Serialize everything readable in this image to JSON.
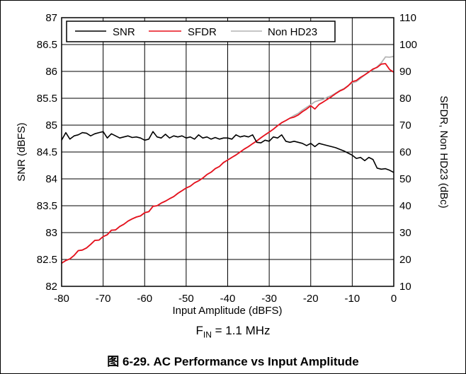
{
  "chart_data": {
    "type": "line",
    "xlabel": "Input Amplitude (dBFS)",
    "ylabel_left": "SNR (dBFS)",
    "ylabel_right": "SFDR, Non HD23 (dBc)",
    "xlim": [
      -80,
      0
    ],
    "ylim_left": [
      82,
      87
    ],
    "ylim_right": [
      10,
      110
    ],
    "x_ticks": [
      "-80",
      "-70",
      "-60",
      "-50",
      "-40",
      "-30",
      "-20",
      "-10",
      "0"
    ],
    "y_left_ticks": [
      "82",
      "82.5",
      "83",
      "83.5",
      "84",
      "84.5",
      "85",
      "85.5",
      "86",
      "86.5",
      "87"
    ],
    "y_right_ticks": [
      "10",
      "20",
      "30",
      "40",
      "50",
      "60",
      "70",
      "80",
      "90",
      "100",
      "110"
    ],
    "grid": true,
    "legend_position": "top-left",
    "series": [
      {
        "name": "SNR",
        "axis": "left",
        "color": "#000000",
        "x": [
          -80,
          -79,
          -78,
          -77,
          -76,
          -75,
          -74,
          -73,
          -72,
          -71,
          -70,
          -69,
          -68,
          -67,
          -66,
          -65,
          -64,
          -63,
          -62,
          -61,
          -60,
          -59,
          -58,
          -57,
          -56,
          -55,
          -54,
          -53,
          -52,
          -51,
          -50,
          -49,
          -48,
          -47,
          -46,
          -45,
          -44,
          -43,
          -42,
          -41,
          -40,
          -39,
          -38,
          -37,
          -36,
          -35,
          -34,
          -33,
          -32,
          -31,
          -30,
          -29,
          -28,
          -27,
          -26,
          -25,
          -24,
          -23,
          -22,
          -21,
          -20,
          -19,
          -18,
          -17,
          -16,
          -15,
          -14,
          -13,
          -12,
          -11,
          -10,
          -9,
          -8,
          -7,
          -6,
          -5,
          -4,
          -3,
          -2,
          -1,
          0
        ],
        "values": [
          84.72,
          84.86,
          84.74,
          84.8,
          84.82,
          84.86,
          84.85,
          84.8,
          84.84,
          84.86,
          84.88,
          84.76,
          84.84,
          84.8,
          84.76,
          84.78,
          84.8,
          84.77,
          84.78,
          84.76,
          84.72,
          84.74,
          84.88,
          84.78,
          84.76,
          84.83,
          84.76,
          84.8,
          84.78,
          84.8,
          84.76,
          84.78,
          84.74,
          84.82,
          84.76,
          84.78,
          84.74,
          84.77,
          84.74,
          84.76,
          84.76,
          84.74,
          84.82,
          84.78,
          84.8,
          84.78,
          84.82,
          84.68,
          84.67,
          84.72,
          84.7,
          84.78,
          84.76,
          84.82,
          84.7,
          84.68,
          84.7,
          84.68,
          84.66,
          84.62,
          84.66,
          84.6,
          84.66,
          84.64,
          84.62,
          84.6,
          84.58,
          84.55,
          84.52,
          84.48,
          84.44,
          84.38,
          84.4,
          84.34,
          84.4,
          84.36,
          84.2,
          84.18,
          84.19,
          84.16,
          84.12
        ]
      },
      {
        "name": "SFDR",
        "axis": "right",
        "color": "#e8101c",
        "x": [
          -80,
          -79,
          -78,
          -77,
          -76,
          -75,
          -74,
          -73,
          -72,
          -71,
          -70,
          -69,
          -68,
          -67,
          -66,
          -65,
          -64,
          -63,
          -62,
          -61,
          -60,
          -59,
          -58,
          -57,
          -56,
          -55,
          -54,
          -53,
          -52,
          -51,
          -50,
          -49,
          -48,
          -47,
          -46,
          -45,
          -44,
          -43,
          -42,
          -41,
          -40,
          -39,
          -38,
          -37,
          -36,
          -35,
          -34,
          -33,
          -32,
          -31,
          -30,
          -29,
          -28,
          -27,
          -26,
          -25,
          -24,
          -23,
          -22,
          -21,
          -20,
          -19,
          -18,
          -17,
          -16,
          -15,
          -14,
          -13,
          -12,
          -11,
          -10,
          -9,
          -8,
          -7,
          -6,
          -5,
          -4,
          -3,
          -2,
          -1,
          0
        ],
        "values": [
          18.6,
          19.6,
          20.2,
          21.5,
          23.3,
          23.5,
          24.3,
          25.6,
          27.1,
          27.2,
          28.5,
          29.2,
          30.9,
          31.0,
          32.3,
          33.1,
          34.3,
          35.1,
          35.8,
          36.2,
          37.4,
          37.8,
          39.8,
          40.0,
          41.0,
          41.7,
          42.6,
          43.4,
          44.6,
          45.6,
          46.6,
          47.3,
          48.5,
          49.3,
          50.3,
          51.6,
          52.5,
          53.8,
          54.6,
          56.1,
          57.0,
          58.0,
          58.9,
          60.0,
          61.1,
          62.0,
          63.1,
          64.1,
          65.3,
          66.4,
          67.4,
          68.5,
          69.8,
          70.9,
          71.7,
          72.6,
          73.0,
          73.8,
          75.0,
          76.0,
          77.2,
          76.0,
          77.7,
          78.6,
          79.6,
          80.6,
          81.7,
          82.7,
          83.4,
          84.6,
          86.2,
          86.6,
          87.8,
          88.7,
          89.8,
          90.9,
          91.5,
          92.7,
          92.9,
          90.7,
          89.7
        ]
      },
      {
        "name": "Non HD23",
        "axis": "right",
        "color": "#b4b4b4",
        "x": [
          -80,
          -79,
          -78,
          -77,
          -76,
          -75,
          -74,
          -73,
          -72,
          -71,
          -70,
          -69,
          -68,
          -67,
          -66,
          -65,
          -64,
          -63,
          -62,
          -61,
          -60,
          -59,
          -58,
          -57,
          -56,
          -55,
          -54,
          -53,
          -52,
          -51,
          -50,
          -49,
          -48,
          -47,
          -46,
          -45,
          -44,
          -43,
          -42,
          -41,
          -40,
          -39,
          -38,
          -37,
          -36,
          -35,
          -34,
          -33,
          -32,
          -31,
          -30,
          -29,
          -28,
          -27,
          -26,
          -25,
          -24,
          -23,
          -22,
          -21,
          -20,
          -19,
          -18,
          -17,
          -16,
          -15,
          -14,
          -13,
          -12,
          -11,
          -10,
          -9,
          -8,
          -7,
          -6,
          -5,
          -4,
          -3,
          -2,
          -1,
          0
        ],
        "values": [
          18.6,
          19.6,
          20.2,
          21.5,
          23.3,
          23.5,
          24.3,
          25.6,
          27.1,
          27.2,
          28.5,
          29.2,
          30.9,
          31.0,
          32.3,
          33.1,
          34.3,
          35.1,
          35.8,
          36.2,
          37.4,
          37.8,
          39.8,
          40.0,
          41.0,
          41.7,
          42.6,
          43.4,
          44.6,
          45.6,
          46.6,
          47.3,
          48.5,
          49.3,
          50.3,
          51.6,
          52.5,
          53.8,
          54.6,
          56.0,
          57.0,
          58.0,
          58.9,
          60.0,
          61.1,
          62.0,
          63.1,
          64.1,
          65.3,
          66.4,
          67.4,
          68.5,
          69.8,
          70.9,
          71.7,
          72.6,
          73.6,
          74.4,
          75.6,
          76.6,
          77.6,
          78.7,
          79.2,
          79.6,
          80.4,
          81.0,
          81.9,
          82.9,
          83.6,
          84.7,
          85.7,
          86.2,
          87.4,
          88.7,
          89.7,
          90.6,
          91.7,
          93.2,
          95.4,
          95.3,
          95.6
        ]
      }
    ]
  },
  "subtitle": {
    "prefix": "F",
    "subscript": "IN",
    "suffix": " = 1.1 MHz"
  },
  "caption": "图 6-29. AC Performance vs Input Amplitude"
}
